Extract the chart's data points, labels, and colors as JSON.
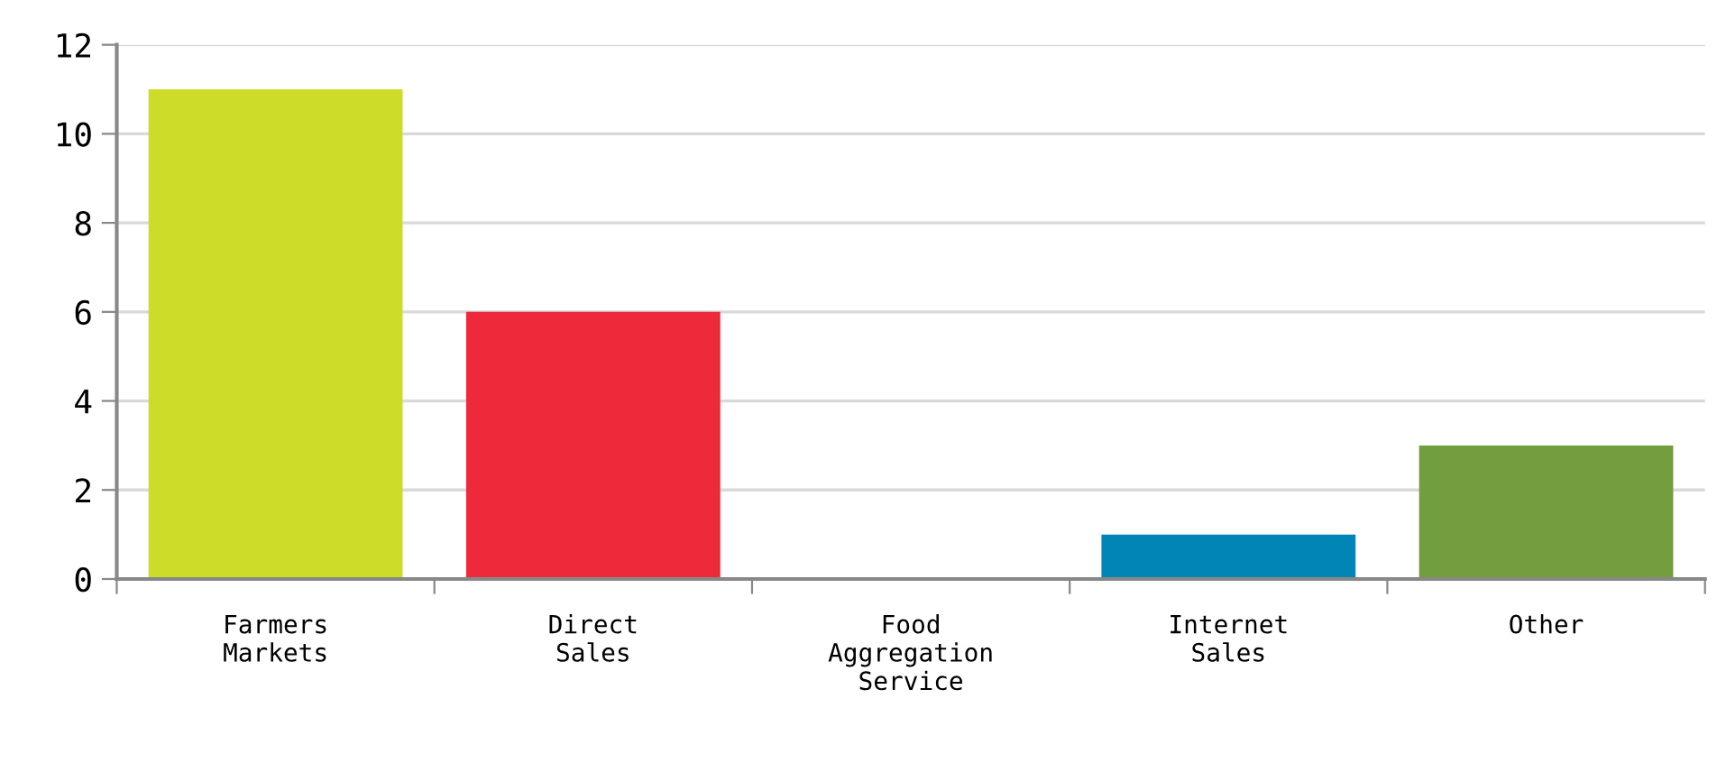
{
  "chart_data": {
    "type": "bar",
    "categories": [
      "Farmers\nMarkets",
      "Direct\nSales",
      "Food\nAggregation\nService",
      "Internet\nSales",
      "Other"
    ],
    "values": [
      11,
      6,
      0,
      1,
      3
    ],
    "colors": [
      "#cddc29",
      "#ee2a3a",
      "#f7a823",
      "#0085b6",
      "#739e3e"
    ],
    "ylim": [
      0,
      12
    ],
    "yticks": [
      0,
      2,
      4,
      6,
      8,
      10,
      12
    ],
    "grid": "y",
    "legend": false
  }
}
